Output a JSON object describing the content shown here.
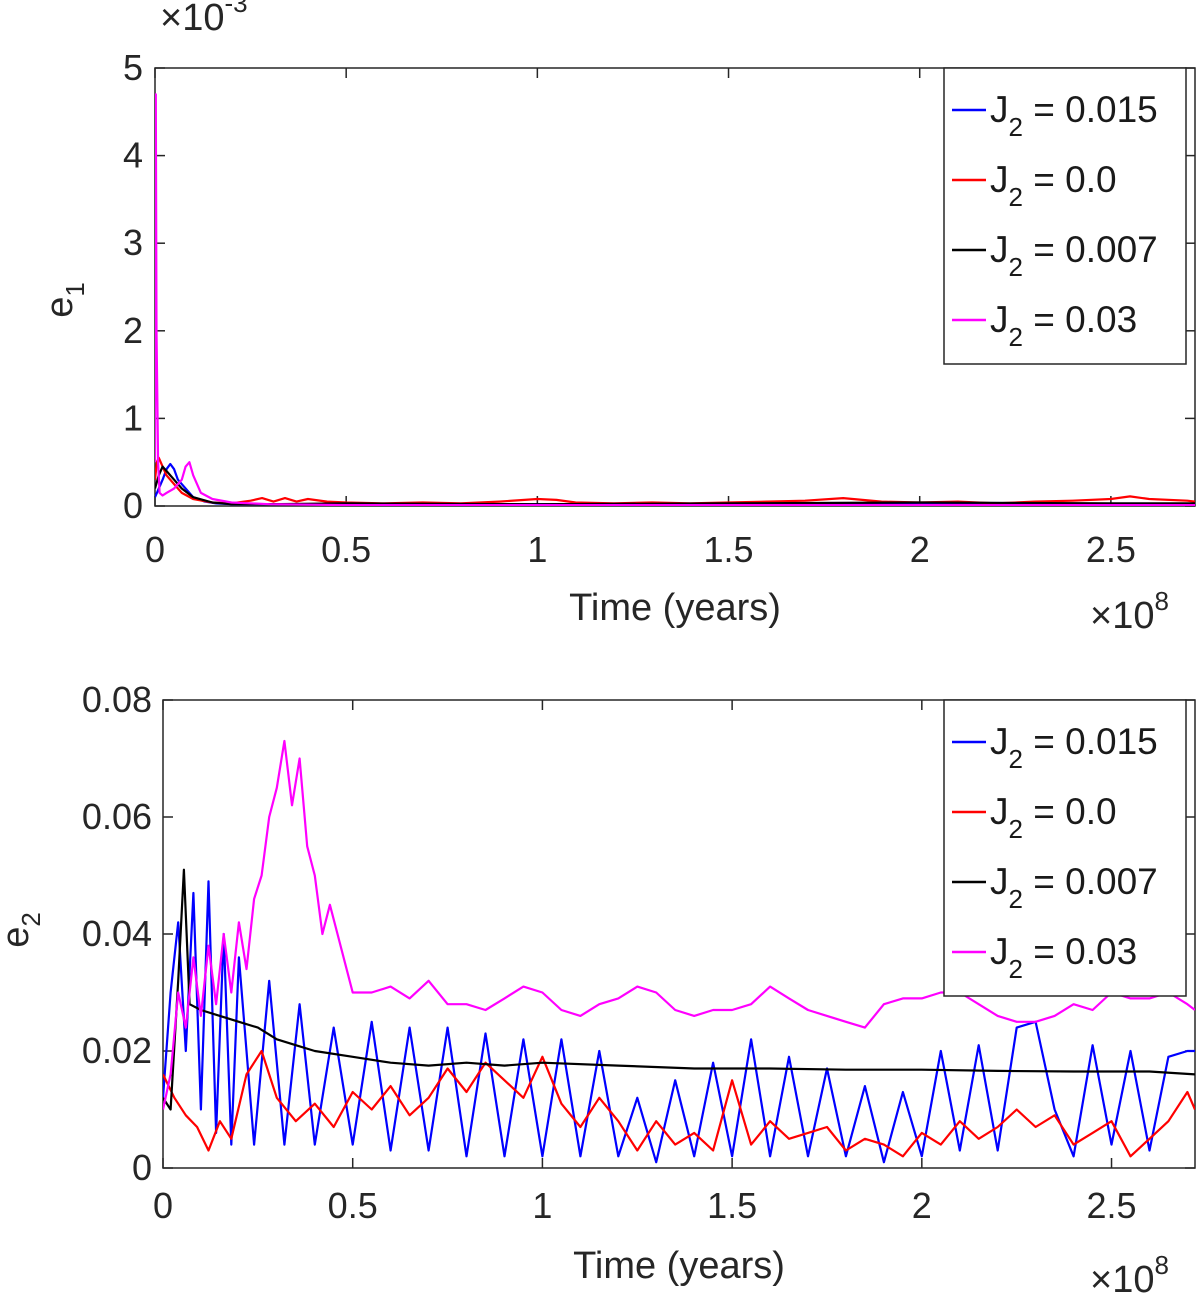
{
  "chart_data": [
    {
      "type": "line",
      "title": "",
      "xlabel": "Time (years)",
      "ylabel_base": "e",
      "ylabel_sub": "1",
      "x_exponent_base": "×10",
      "x_exponent": "8",
      "y_exponent_base": "×10",
      "y_exponent": "-3",
      "xlim": [
        0,
        2.72
      ],
      "ylim": [
        0,
        5
      ],
      "x_ticks": [
        "0",
        "0.5",
        "1",
        "1.5",
        "2",
        "2.5"
      ],
      "y_ticks": [
        "0",
        "1",
        "2",
        "3",
        "4",
        "5"
      ],
      "legend_position": "top-right",
      "legend_prefix": "J",
      "legend_sub": "2",
      "series": [
        {
          "name": " = 0.015",
          "color": "#0000ff",
          "x": [
            0,
            0.01,
            0.02,
            0.03,
            0.04,
            0.05,
            0.06,
            0.08,
            0.1,
            0.13,
            0.16,
            0.2,
            0.3,
            0.5,
            1.0,
            1.5,
            2.0,
            2.5,
            2.72
          ],
          "y": [
            0.1,
            0.2,
            0.3,
            0.42,
            0.48,
            0.42,
            0.3,
            0.2,
            0.1,
            0.05,
            0.03,
            0.02,
            0.02,
            0.02,
            0.02,
            0.02,
            0.02,
            0.02,
            0.02
          ]
        },
        {
          "name": " = 0.0",
          "color": "#ff0000",
          "x": [
            0,
            0.005,
            0.01,
            0.02,
            0.03,
            0.05,
            0.07,
            0.1,
            0.15,
            0.2,
            0.25,
            0.28,
            0.31,
            0.34,
            0.37,
            0.4,
            0.45,
            0.5,
            0.6,
            0.7,
            0.8,
            0.9,
            1.0,
            1.05,
            1.1,
            1.2,
            1.3,
            1.4,
            1.5,
            1.6,
            1.7,
            1.8,
            1.85,
            1.9,
            2.0,
            2.1,
            2.2,
            2.3,
            2.4,
            2.5,
            2.55,
            2.6,
            2.7,
            2.72
          ],
          "y": [
            0.3,
            0.5,
            0.55,
            0.45,
            0.35,
            0.25,
            0.15,
            0.08,
            0.04,
            0.03,
            0.06,
            0.09,
            0.05,
            0.09,
            0.05,
            0.08,
            0.05,
            0.04,
            0.03,
            0.04,
            0.03,
            0.05,
            0.08,
            0.07,
            0.04,
            0.03,
            0.04,
            0.03,
            0.04,
            0.05,
            0.06,
            0.09,
            0.07,
            0.05,
            0.04,
            0.05,
            0.03,
            0.05,
            0.06,
            0.08,
            0.11,
            0.08,
            0.06,
            0.05
          ]
        },
        {
          "name": " = 0.007",
          "color": "#000000",
          "x": [
            0,
            0.01,
            0.02,
            0.03,
            0.05,
            0.07,
            0.1,
            0.15,
            0.2,
            0.3,
            0.5,
            1.0,
            1.5,
            2.0,
            2.5,
            2.72
          ],
          "y": [
            0.2,
            0.35,
            0.45,
            0.4,
            0.3,
            0.2,
            0.1,
            0.04,
            0.02,
            0.02,
            0.03,
            0.02,
            0.03,
            0.04,
            0.03,
            0.03
          ]
        },
        {
          "name": " = 0.03",
          "color": "#ff00ff",
          "x": [
            0,
            0.002,
            0.004,
            0.008,
            0.012,
            0.02,
            0.03,
            0.05,
            0.07,
            0.08,
            0.09,
            0.1,
            0.12,
            0.15,
            0.2,
            0.3,
            0.5,
            1.0,
            1.5,
            2.0,
            2.5,
            2.72
          ],
          "y": [
            0.5,
            4.7,
            2.0,
            0.5,
            0.15,
            0.12,
            0.15,
            0.2,
            0.3,
            0.45,
            0.5,
            0.35,
            0.15,
            0.08,
            0.04,
            0.02,
            0.01,
            0.01,
            0.01,
            0.01,
            0.01,
            0.01
          ]
        }
      ]
    },
    {
      "type": "line",
      "title": "",
      "xlabel": "Time (years)",
      "ylabel_base": "e",
      "ylabel_sub": "2",
      "x_exponent_base": "×10",
      "x_exponent": "8",
      "xlim": [
        0,
        2.72
      ],
      "ylim": [
        0,
        0.08
      ],
      "x_ticks": [
        "0",
        "0.5",
        "1",
        "1.5",
        "2",
        "2.5"
      ],
      "y_ticks": [
        "0",
        "0.02",
        "0.04",
        "0.06",
        "0.08"
      ],
      "legend_position": "top-right",
      "legend_prefix": "J",
      "legend_sub": "2",
      "series": [
        {
          "name": " = 0.015",
          "color": "#0000ff",
          "x": [
            0,
            0.02,
            0.04,
            0.06,
            0.08,
            0.1,
            0.12,
            0.14,
            0.16,
            0.18,
            0.2,
            0.24,
            0.28,
            0.32,
            0.36,
            0.4,
            0.45,
            0.5,
            0.55,
            0.6,
            0.65,
            0.7,
            0.75,
            0.8,
            0.85,
            0.9,
            0.95,
            1.0,
            1.05,
            1.1,
            1.15,
            1.2,
            1.25,
            1.3,
            1.35,
            1.4,
            1.45,
            1.5,
            1.55,
            1.6,
            1.65,
            1.7,
            1.75,
            1.8,
            1.85,
            1.9,
            1.95,
            2.0,
            2.05,
            2.1,
            2.15,
            2.2,
            2.25,
            2.3,
            2.35,
            2.4,
            2.45,
            2.5,
            2.55,
            2.6,
            2.65,
            2.7,
            2.72
          ],
          "y": [
            0.012,
            0.03,
            0.042,
            0.02,
            0.047,
            0.01,
            0.049,
            0.006,
            0.04,
            0.004,
            0.036,
            0.004,
            0.032,
            0.004,
            0.028,
            0.004,
            0.024,
            0.004,
            0.025,
            0.003,
            0.024,
            0.003,
            0.024,
            0.002,
            0.023,
            0.002,
            0.022,
            0.002,
            0.022,
            0.002,
            0.02,
            0.002,
            0.012,
            0.001,
            0.015,
            0.002,
            0.018,
            0.002,
            0.022,
            0.002,
            0.019,
            0.002,
            0.017,
            0.002,
            0.014,
            0.001,
            0.013,
            0.002,
            0.02,
            0.003,
            0.021,
            0.003,
            0.024,
            0.025,
            0.01,
            0.002,
            0.021,
            0.004,
            0.02,
            0.003,
            0.019,
            0.02,
            0.02
          ]
        },
        {
          "name": " = 0.0",
          "color": "#ff0000",
          "x": [
            0,
            0.03,
            0.06,
            0.09,
            0.12,
            0.15,
            0.18,
            0.22,
            0.26,
            0.3,
            0.35,
            0.4,
            0.45,
            0.5,
            0.55,
            0.6,
            0.65,
            0.7,
            0.75,
            0.8,
            0.85,
            0.9,
            0.95,
            1.0,
            1.05,
            1.1,
            1.15,
            1.2,
            1.25,
            1.3,
            1.35,
            1.4,
            1.45,
            1.5,
            1.55,
            1.6,
            1.65,
            1.7,
            1.75,
            1.8,
            1.85,
            1.9,
            1.95,
            2.0,
            2.05,
            2.1,
            2.15,
            2.2,
            2.25,
            2.3,
            2.35,
            2.4,
            2.45,
            2.5,
            2.55,
            2.6,
            2.65,
            2.7,
            2.72
          ],
          "y": [
            0.016,
            0.012,
            0.009,
            0.007,
            0.003,
            0.008,
            0.005,
            0.016,
            0.02,
            0.012,
            0.008,
            0.011,
            0.007,
            0.013,
            0.01,
            0.014,
            0.009,
            0.012,
            0.017,
            0.013,
            0.018,
            0.015,
            0.012,
            0.019,
            0.011,
            0.007,
            0.012,
            0.008,
            0.003,
            0.008,
            0.004,
            0.006,
            0.003,
            0.015,
            0.004,
            0.008,
            0.005,
            0.006,
            0.007,
            0.003,
            0.005,
            0.004,
            0.002,
            0.006,
            0.004,
            0.008,
            0.005,
            0.007,
            0.01,
            0.007,
            0.009,
            0.004,
            0.006,
            0.008,
            0.002,
            0.005,
            0.008,
            0.013,
            0.01
          ]
        },
        {
          "name": " = 0.007",
          "color": "#000000",
          "x": [
            0,
            0.02,
            0.04,
            0.055,
            0.07,
            0.1,
            0.15,
            0.2,
            0.25,
            0.3,
            0.35,
            0.4,
            0.5,
            0.6,
            0.7,
            0.8,
            0.9,
            1.0,
            1.2,
            1.4,
            1.6,
            1.8,
            2.0,
            2.2,
            2.4,
            2.6,
            2.72
          ],
          "y": [
            0.012,
            0.01,
            0.032,
            0.051,
            0.028,
            0.027,
            0.026,
            0.025,
            0.024,
            0.022,
            0.021,
            0.02,
            0.019,
            0.018,
            0.0175,
            0.018,
            0.0175,
            0.018,
            0.0175,
            0.017,
            0.017,
            0.0168,
            0.0168,
            0.0166,
            0.0165,
            0.0165,
            0.016
          ]
        },
        {
          "name": " = 0.03",
          "color": "#ff00ff",
          "x": [
            0,
            0.02,
            0.04,
            0.06,
            0.08,
            0.1,
            0.12,
            0.14,
            0.16,
            0.18,
            0.2,
            0.22,
            0.24,
            0.26,
            0.28,
            0.3,
            0.32,
            0.34,
            0.36,
            0.38,
            0.4,
            0.42,
            0.44,
            0.46,
            0.48,
            0.5,
            0.55,
            0.6,
            0.65,
            0.7,
            0.75,
            0.8,
            0.85,
            0.9,
            0.95,
            1.0,
            1.05,
            1.1,
            1.15,
            1.2,
            1.25,
            1.3,
            1.35,
            1.4,
            1.45,
            1.5,
            1.55,
            1.6,
            1.65,
            1.7,
            1.75,
            1.8,
            1.85,
            1.9,
            1.95,
            2.0,
            2.05,
            2.1,
            2.15,
            2.2,
            2.25,
            2.3,
            2.35,
            2.4,
            2.45,
            2.5,
            2.55,
            2.6,
            2.65,
            2.7,
            2.72
          ],
          "y": [
            0.01,
            0.016,
            0.03,
            0.024,
            0.036,
            0.026,
            0.038,
            0.028,
            0.04,
            0.03,
            0.042,
            0.034,
            0.046,
            0.05,
            0.06,
            0.065,
            0.073,
            0.062,
            0.07,
            0.055,
            0.05,
            0.04,
            0.045,
            0.04,
            0.035,
            0.03,
            0.03,
            0.031,
            0.029,
            0.032,
            0.028,
            0.028,
            0.027,
            0.029,
            0.031,
            0.03,
            0.027,
            0.026,
            0.028,
            0.029,
            0.031,
            0.03,
            0.027,
            0.026,
            0.027,
            0.027,
            0.028,
            0.031,
            0.029,
            0.027,
            0.026,
            0.025,
            0.024,
            0.028,
            0.029,
            0.029,
            0.03,
            0.03,
            0.028,
            0.026,
            0.025,
            0.025,
            0.026,
            0.028,
            0.027,
            0.03,
            0.029,
            0.029,
            0.03,
            0.028,
            0.027
          ]
        }
      ]
    }
  ]
}
